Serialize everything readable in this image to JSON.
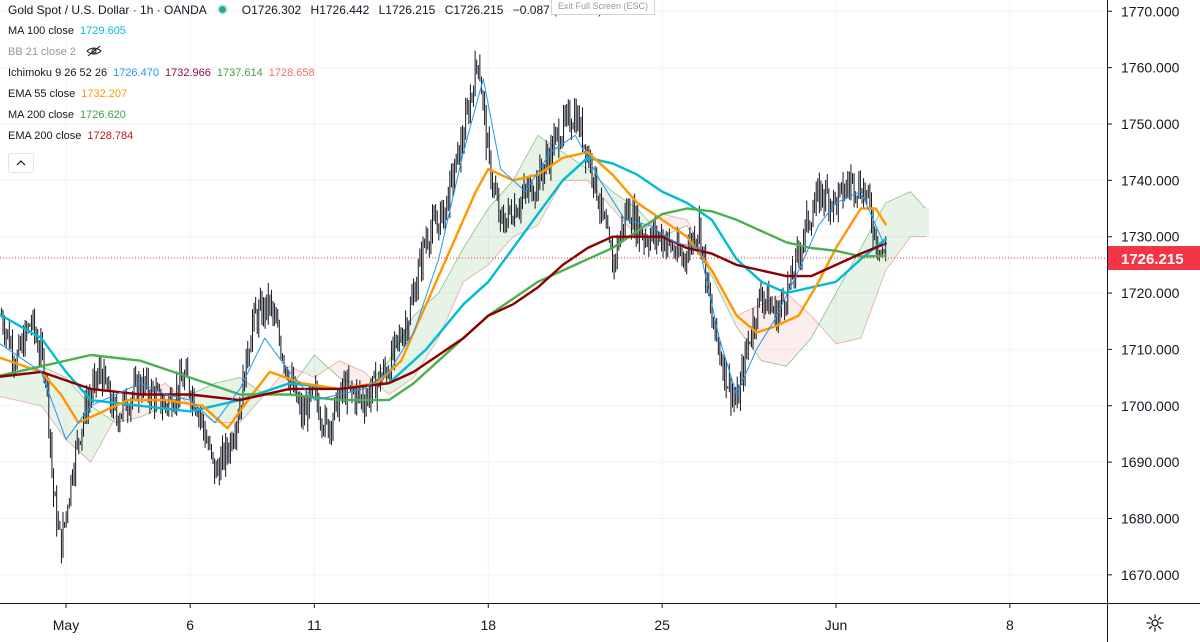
{
  "header": {
    "symbol": "Gold Spot / U.S. Dollar · 1h · OANDA",
    "o_label": "O",
    "o": "1726.302",
    "h_label": "H",
    "h": "1726.442",
    "l_label": "L",
    "l": "1726.215",
    "c_label": "C",
    "c": "1726.215",
    "change": "−0.087 (−0.01%)"
  },
  "exit_fullscreen": "Exit Full Screen (ESC)",
  "indicators": [
    {
      "name": "MA 100 close",
      "values": [
        "1729.605"
      ],
      "colors": [
        "#00bcd4"
      ]
    },
    {
      "name": "BB 21 close 2",
      "values": [],
      "colors": [],
      "hidden": true
    },
    {
      "name": "Ichimoku 9 26 52 26",
      "values": [
        "1726.470",
        "1732.966",
        "1737.614",
        "1728.658"
      ],
      "colors": [
        "#2196f3",
        "#880e4f",
        "#43a047",
        "#e57373"
      ]
    },
    {
      "name": "EMA 55 close",
      "values": [
        "1732.207"
      ],
      "colors": [
        "#ff9800"
      ]
    },
    {
      "name": "MA 200 close",
      "values": [
        "1726.620"
      ],
      "colors": [
        "#43a047"
      ]
    },
    {
      "name": "EMA 200 close",
      "values": [
        "1728.784"
      ],
      "colors": [
        "#b71c1c"
      ]
    }
  ],
  "last_price_label": "1726.215",
  "colors": {
    "candle": "#131722",
    "ma100": "#00bcd4",
    "ema55": "#ff9800",
    "ma200": "#4caf50",
    "ema200": "#8b0000",
    "tenkan": "#2196f3",
    "cloud_bull": "#43a047",
    "cloud_bear": "#e57373",
    "price_badge": "#f23645"
  },
  "chart_data": {
    "type": "candlestick",
    "title": "Gold Spot / U.S. Dollar · 1h · OANDA",
    "ylim": [
      1665,
      1772
    ],
    "y_ticks": [
      "1670.000",
      "1680.000",
      "1690.000",
      "1700.000",
      "1710.000",
      "1720.000",
      "1730.000",
      "1740.000",
      "1750.000",
      "1760.000",
      "1770.000"
    ],
    "x_ticks": [
      {
        "label": "May",
        "day": 1
      },
      {
        "label": "6",
        "day": 6
      },
      {
        "label": "11",
        "day": 11
      },
      {
        "label": "18",
        "day": 18
      },
      {
        "label": "25",
        "day": 25
      },
      {
        "label": "Jun",
        "day": 32
      },
      {
        "label": "8",
        "day": 39
      }
    ],
    "grid": true,
    "closes": [
      {
        "day": -1.6,
        "close": 1716
      },
      {
        "day": -1.0,
        "close": 1708
      },
      {
        "day": -0.4,
        "close": 1715
      },
      {
        "day": 0.2,
        "close": 1706
      },
      {
        "day": 0.5,
        "close": 1684
      },
      {
        "day": 0.8,
        "close": 1675
      },
      {
        "day": 1.3,
        "close": 1690
      },
      {
        "day": 1.8,
        "close": 1700
      },
      {
        "day": 2.4,
        "close": 1706
      },
      {
        "day": 3.0,
        "close": 1698
      },
      {
        "day": 4.0,
        "close": 1704
      },
      {
        "day": 5.0,
        "close": 1700
      },
      {
        "day": 5.8,
        "close": 1705
      },
      {
        "day": 6.3,
        "close": 1700
      },
      {
        "day": 7.0,
        "close": 1688
      },
      {
        "day": 7.5,
        "close": 1692
      },
      {
        "day": 8.0,
        "close": 1700
      },
      {
        "day": 8.5,
        "close": 1715
      },
      {
        "day": 9.2,
        "close": 1718
      },
      {
        "day": 10.0,
        "close": 1705
      },
      {
        "day": 10.5,
        "close": 1698
      },
      {
        "day": 11.0,
        "close": 1702
      },
      {
        "day": 11.5,
        "close": 1696
      },
      {
        "day": 12.2,
        "close": 1703
      },
      {
        "day": 13.0,
        "close": 1701
      },
      {
        "day": 14.0,
        "close": 1707
      },
      {
        "day": 14.8,
        "close": 1716
      },
      {
        "day": 15.5,
        "close": 1730
      },
      {
        "day": 16.2,
        "close": 1734
      },
      {
        "day": 17.0,
        "close": 1748
      },
      {
        "day": 17.6,
        "close": 1762
      },
      {
        "day": 18.0,
        "close": 1744
      },
      {
        "day": 18.5,
        "close": 1732
      },
      {
        "day": 19.2,
        "close": 1736
      },
      {
        "day": 20.0,
        "close": 1740
      },
      {
        "day": 20.8,
        "close": 1748
      },
      {
        "day": 21.5,
        "close": 1752
      },
      {
        "day": 22.2,
        "close": 1742
      },
      {
        "day": 23.0,
        "close": 1725
      },
      {
        "day": 23.6,
        "close": 1735
      },
      {
        "day": 24.3,
        "close": 1730
      },
      {
        "day": 25.0,
        "close": 1730
      },
      {
        "day": 25.8,
        "close": 1726
      },
      {
        "day": 26.5,
        "close": 1732
      },
      {
        "day": 27.0,
        "close": 1715
      },
      {
        "day": 27.6,
        "close": 1705
      },
      {
        "day": 28.0,
        "close": 1700
      },
      {
        "day": 28.5,
        "close": 1712
      },
      {
        "day": 29.0,
        "close": 1720
      },
      {
        "day": 29.6,
        "close": 1716
      },
      {
        "day": 30.2,
        "close": 1722
      },
      {
        "day": 30.8,
        "close": 1732
      },
      {
        "day": 31.4,
        "close": 1738
      },
      {
        "day": 32.0,
        "close": 1736
      },
      {
        "day": 32.6,
        "close": 1740
      },
      {
        "day": 33.2,
        "close": 1738
      },
      {
        "day": 33.6,
        "close": 1730
      },
      {
        "day": 34.0,
        "close": 1726
      }
    ],
    "series": [
      {
        "name": "MA 100 close",
        "color": "#00bcd4",
        "points": [
          [
            -2,
            1717
          ],
          [
            0,
            1712
          ],
          [
            1,
            1706
          ],
          [
            2,
            1701
          ],
          [
            4,
            1700
          ],
          [
            6,
            1699
          ],
          [
            8,
            1701
          ],
          [
            10,
            1704
          ],
          [
            12,
            1703
          ],
          [
            14,
            1704
          ],
          [
            15.5,
            1710
          ],
          [
            17,
            1718
          ],
          [
            18,
            1722
          ],
          [
            19,
            1728
          ],
          [
            20,
            1734
          ],
          [
            21,
            1740
          ],
          [
            22,
            1744
          ],
          [
            23,
            1743
          ],
          [
            24,
            1741
          ],
          [
            25,
            1738
          ],
          [
            26,
            1736
          ],
          [
            27,
            1733
          ],
          [
            28,
            1726
          ],
          [
            29,
            1722
          ],
          [
            30,
            1720
          ],
          [
            31,
            1721
          ],
          [
            32,
            1722
          ],
          [
            33,
            1726
          ],
          [
            34,
            1729.6
          ]
        ]
      },
      {
        "name": "EMA 55 close",
        "color": "#ff9800",
        "points": [
          [
            -2,
            1709
          ],
          [
            0,
            1706
          ],
          [
            0.8,
            1702
          ],
          [
            1.5,
            1697
          ],
          [
            2.5,
            1699
          ],
          [
            3.5,
            1701
          ],
          [
            5,
            1701
          ],
          [
            6.5,
            1700
          ],
          [
            7.5,
            1696
          ],
          [
            8.5,
            1702
          ],
          [
            9.2,
            1706
          ],
          [
            10.5,
            1704
          ],
          [
            12,
            1703
          ],
          [
            13.5,
            1704
          ],
          [
            14.5,
            1708
          ],
          [
            15.5,
            1718
          ],
          [
            16.5,
            1728
          ],
          [
            17.5,
            1738
          ],
          [
            18,
            1742
          ],
          [
            19,
            1740
          ],
          [
            20,
            1741
          ],
          [
            21,
            1744
          ],
          [
            22,
            1745
          ],
          [
            23,
            1741
          ],
          [
            24,
            1736
          ],
          [
            25,
            1733
          ],
          [
            26,
            1730
          ],
          [
            27,
            1724
          ],
          [
            28,
            1716
          ],
          [
            28.8,
            1713
          ],
          [
            29.5,
            1714
          ],
          [
            30.5,
            1716
          ],
          [
            31.3,
            1722
          ],
          [
            32,
            1728
          ],
          [
            33,
            1735
          ],
          [
            33.6,
            1735
          ],
          [
            34,
            1732.2
          ]
        ]
      },
      {
        "name": "MA 200 close",
        "color": "#4caf50",
        "points": [
          [
            -2,
            1705
          ],
          [
            0,
            1707
          ],
          [
            2,
            1709
          ],
          [
            4,
            1708
          ],
          [
            6,
            1705
          ],
          [
            8,
            1702
          ],
          [
            10,
            1702
          ],
          [
            12,
            1701
          ],
          [
            14,
            1701
          ],
          [
            15,
            1704
          ],
          [
            16,
            1708
          ],
          [
            17,
            1712
          ],
          [
            18,
            1716
          ],
          [
            19,
            1719
          ],
          [
            20,
            1722
          ],
          [
            21,
            1724
          ],
          [
            22,
            1726
          ],
          [
            23,
            1728
          ],
          [
            24,
            1731
          ],
          [
            25,
            1734
          ],
          [
            26,
            1735
          ],
          [
            27,
            1734.5
          ],
          [
            28,
            1733
          ],
          [
            29,
            1731
          ],
          [
            30,
            1729
          ],
          [
            31,
            1728
          ],
          [
            32,
            1727.5
          ],
          [
            33,
            1726.5
          ],
          [
            34,
            1726.6
          ]
        ]
      },
      {
        "name": "EMA 200 close",
        "color": "#8b0000",
        "points": [
          [
            -2,
            1705
          ],
          [
            0,
            1706
          ],
          [
            2,
            1703
          ],
          [
            4,
            1702
          ],
          [
            6,
            1702
          ],
          [
            8,
            1701
          ],
          [
            10,
            1703
          ],
          [
            12,
            1703
          ],
          [
            14,
            1704
          ],
          [
            15,
            1706
          ],
          [
            16,
            1709
          ],
          [
            17,
            1712
          ],
          [
            18,
            1716
          ],
          [
            19,
            1718
          ],
          [
            20,
            1721
          ],
          [
            21,
            1725
          ],
          [
            22,
            1728
          ],
          [
            23,
            1730
          ],
          [
            24,
            1730
          ],
          [
            25,
            1730
          ],
          [
            26,
            1728
          ],
          [
            27,
            1727
          ],
          [
            28,
            1725
          ],
          [
            29,
            1724
          ],
          [
            30,
            1723
          ],
          [
            31,
            1723
          ],
          [
            32,
            1725
          ],
          [
            33,
            1727
          ],
          [
            34,
            1728.8
          ]
        ]
      },
      {
        "name": "Ichimoku tenkan",
        "color": "#2196f3",
        "points": [
          [
            -2,
            1712
          ],
          [
            0,
            1706
          ],
          [
            1,
            1694
          ],
          [
            2,
            1700
          ],
          [
            3,
            1702
          ],
          [
            4,
            1704
          ],
          [
            5,
            1702
          ],
          [
            6,
            1701
          ],
          [
            7,
            1697
          ],
          [
            8,
            1703
          ],
          [
            9,
            1712
          ],
          [
            10,
            1706
          ],
          [
            11,
            1701
          ],
          [
            12,
            1702
          ],
          [
            13,
            1703
          ],
          [
            14,
            1706
          ],
          [
            15,
            1713
          ],
          [
            16,
            1726
          ],
          [
            17,
            1745
          ],
          [
            17.8,
            1758
          ],
          [
            18.5,
            1742
          ],
          [
            19.5,
            1738
          ],
          [
            20.5,
            1745
          ],
          [
            21.5,
            1748
          ],
          [
            22.5,
            1740
          ],
          [
            23.5,
            1733
          ],
          [
            24.5,
            1732
          ],
          [
            25.5,
            1729
          ],
          [
            26.5,
            1728
          ],
          [
            27.3,
            1712
          ],
          [
            28,
            1702
          ],
          [
            28.8,
            1710
          ],
          [
            29.5,
            1715
          ],
          [
            30.5,
            1724
          ],
          [
            31.3,
            1732
          ],
          [
            32,
            1736
          ],
          [
            33,
            1738
          ],
          [
            34,
            1728
          ]
        ]
      }
    ],
    "cloud_a": [
      [
        -2,
        1705
      ],
      [
        0,
        1707
      ],
      [
        1,
        1705
      ],
      [
        2,
        1700
      ],
      [
        3,
        1697
      ],
      [
        4,
        1698
      ],
      [
        5,
        1700
      ],
      [
        6,
        1702
      ],
      [
        7,
        1704
      ],
      [
        8,
        1705
      ],
      [
        9,
        1702
      ],
      [
        10,
        1703
      ],
      [
        11,
        1709
      ],
      [
        12,
        1705
      ],
      [
        13,
        1703
      ],
      [
        14,
        1708
      ],
      [
        15,
        1716
      ],
      [
        16,
        1720
      ],
      [
        17,
        1728
      ],
      [
        18,
        1735
      ],
      [
        19,
        1740
      ],
      [
        20,
        1748
      ],
      [
        21,
        1745
      ],
      [
        22,
        1742
      ],
      [
        23,
        1738
      ],
      [
        24,
        1735
      ],
      [
        25,
        1730
      ],
      [
        26,
        1732
      ],
      [
        27,
        1723
      ],
      [
        28,
        1714
      ],
      [
        29,
        1708
      ],
      [
        30,
        1707
      ],
      [
        31,
        1712
      ],
      [
        32,
        1720
      ],
      [
        33,
        1728
      ],
      [
        34,
        1736
      ],
      [
        35,
        1738
      ],
      [
        35.6,
        1735
      ]
    ],
    "cloud_b": [
      [
        -2,
        1702
      ],
      [
        0,
        1700
      ],
      [
        1,
        1694
      ],
      [
        2,
        1690
      ],
      [
        3,
        1698
      ],
      [
        4,
        1702
      ],
      [
        5,
        1704
      ],
      [
        6,
        1700
      ],
      [
        7,
        1697
      ],
      [
        8,
        1697
      ],
      [
        9,
        1702
      ],
      [
        10,
        1707
      ],
      [
        11,
        1705
      ],
      [
        12,
        1708
      ],
      [
        13,
        1706
      ],
      [
        14,
        1702
      ],
      [
        15,
        1705
      ],
      [
        16,
        1712
      ],
      [
        17,
        1722
      ],
      [
        18,
        1725
      ],
      [
        19,
        1730
      ],
      [
        20,
        1732
      ],
      [
        21,
        1740
      ],
      [
        22,
        1740
      ],
      [
        23,
        1735
      ],
      [
        24,
        1730
      ],
      [
        25,
        1734
      ],
      [
        26,
        1733
      ],
      [
        27,
        1724
      ],
      [
        28,
        1716
      ],
      [
        29,
        1718
      ],
      [
        30,
        1720
      ],
      [
        31,
        1716
      ],
      [
        32,
        1711
      ],
      [
        33,
        1712
      ],
      [
        34,
        1724
      ],
      [
        35,
        1730
      ],
      [
        35.6,
        1730
      ]
    ],
    "last_price": 1726.215
  }
}
